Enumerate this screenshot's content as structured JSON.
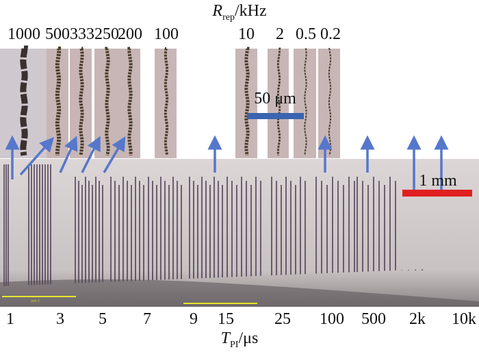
{
  "top_axis": {
    "symbol": "R",
    "subscript": "rep",
    "unit": "/kHz"
  },
  "rep_rates": [
    "1000",
    "500",
    "333",
    "250",
    "200",
    "100",
    "10",
    "2",
    "0.5",
    "0.2"
  ],
  "bottom_axis": {
    "symbol": "T",
    "subscript": "PI",
    "unit": "/μs"
  },
  "pulse_intervals": [
    "1",
    "3",
    "5",
    "7",
    "9",
    "15",
    "25",
    "100",
    "500",
    "2k",
    "10k"
  ],
  "scale_bars": {
    "micro": {
      "label": "50 μm",
      "color": "#3a64b0"
    },
    "macro": {
      "label": "1 mm",
      "color": "#e02020"
    }
  },
  "arrow_color": "#5577cc",
  "microscope_overlay_text": "mm 1"
}
